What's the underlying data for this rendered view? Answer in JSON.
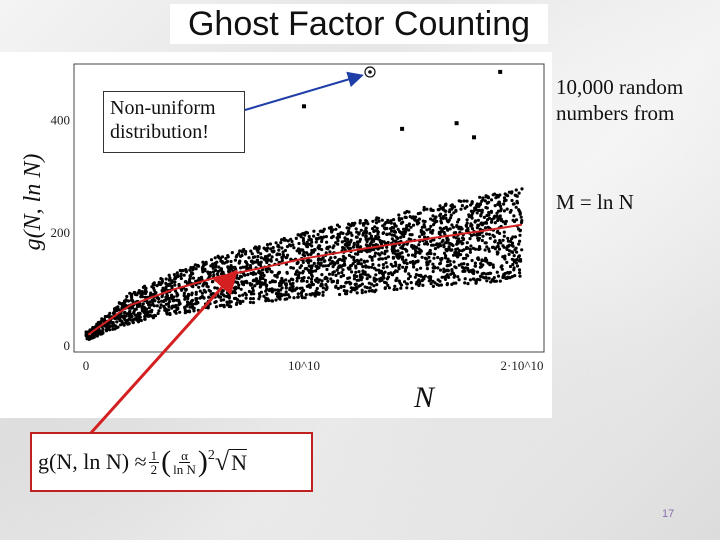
{
  "slide": {
    "title": "Ghost Factor Counting",
    "note": "Non-uniform distribution!",
    "random_text": "10,000 random numbers from",
    "m_text": "M = ln N",
    "slide_number": "17"
  },
  "formula": {
    "lhs": "g(N, ln N) ≈",
    "half_num": "1",
    "half_den": "2",
    "alpha_num": "α",
    "alpha_den": "ln N",
    "exp": "2",
    "rad": "N"
  },
  "colors": {
    "points": "#000000",
    "fit": "#d42020",
    "arrow": "#1f3ea8",
    "formula_border": "#c02020"
  },
  "chart_data": {
    "type": "scatter",
    "xlabel": "N",
    "ylabel": "g(N, ln N)",
    "x_ticks": [
      "0",
      "10^10",
      "2·10^10"
    ],
    "y_ticks": [
      "0",
      "200",
      "400"
    ],
    "xlim": [
      0,
      20000000000.0
    ],
    "ylim": [
      0,
      500
    ],
    "n_points": 10000,
    "fit_curve": {
      "x": [
        100000000.0,
        2000000000.0,
        4000000000.0,
        6000000000.0,
        8000000000.0,
        10000000000.0,
        12000000000.0,
        14000000000.0,
        16000000000.0,
        18000000000.0,
        20000000000.0
      ],
      "y": [
        20,
        72,
        100,
        122,
        138,
        155,
        168,
        180,
        192,
        203,
        215
      ]
    },
    "outliers": [
      {
        "x": 19000000000.0,
        "y": 486
      },
      {
        "x": 10000000000.0,
        "y": 425
      },
      {
        "x": 14500000000.0,
        "y": 385
      },
      {
        "x": 17000000000.0,
        "y": 395
      },
      {
        "x": 17800000000.0,
        "y": 370
      }
    ]
  }
}
